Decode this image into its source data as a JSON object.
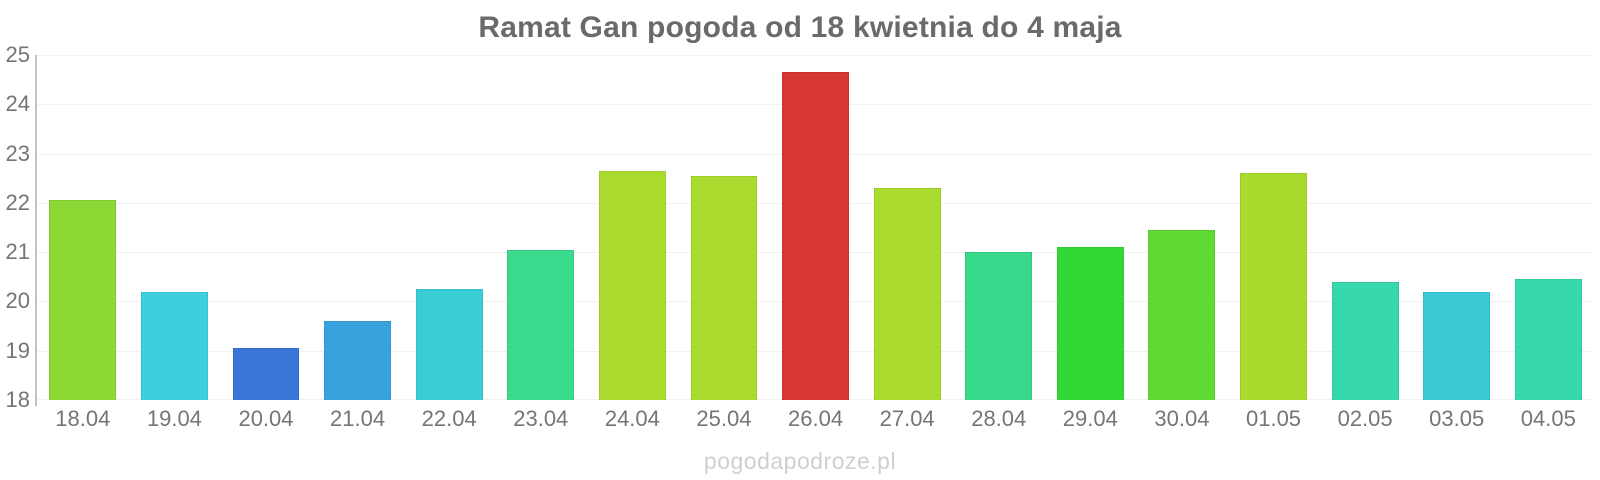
{
  "watermark": "pogodapodroze.pl",
  "colors": {
    "title_text": "#6a6a6a",
    "axis_label_text": "#757575",
    "gridline": "#f1f1f1",
    "y_axis_line": "#c2c2c2",
    "watermark_text": "#cdd0d3",
    "background": "#ffffff"
  },
  "chart_data": {
    "type": "bar",
    "title": "Ramat Gan pogoda od 18 kwietnia do 4 maja",
    "xlabel": "",
    "ylabel": "",
    "ylim": [
      18,
      25
    ],
    "yticks": [
      25,
      24,
      23,
      22,
      21,
      20,
      19,
      18
    ],
    "grid": true,
    "legend": false,
    "categories": [
      "18.04",
      "19.04",
      "20.04",
      "21.04",
      "22.04",
      "23.04",
      "24.04",
      "25.04",
      "26.04",
      "27.04",
      "28.04",
      "29.04",
      "30.04",
      "01.05",
      "02.05",
      "03.05",
      "04.05"
    ],
    "values": [
      22.05,
      20.2,
      19.05,
      19.6,
      20.25,
      21.05,
      22.65,
      22.55,
      24.65,
      22.3,
      21.0,
      21.1,
      21.45,
      22.6,
      20.4,
      20.2,
      20.45
    ],
    "bar_colors": [
      "#8dd835",
      "#3ccfdd",
      "#3a76d7",
      "#37a2db",
      "#3bcdd6",
      "#39da8b",
      "#aadb2e",
      "#aadb2e",
      "#d63831",
      "#aadb2e",
      "#39d98c",
      "#33d835",
      "#5fda35",
      "#a9da2e",
      "#36d8ac",
      "#3bc9d6",
      "#36d8ac"
    ]
  }
}
